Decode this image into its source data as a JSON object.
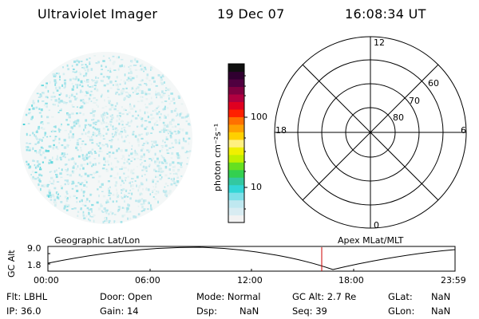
{
  "header": {
    "instrument": "Ultraviolet Imager",
    "date": "19 Dec 07",
    "time": "16:08:34 UT"
  },
  "colorbar": {
    "unit_label": "photon cm⁻²s⁻¹",
    "ticks": [
      "100",
      "10"
    ],
    "colors": [
      "#f2f2f2",
      "#d8ecf2",
      "#bfe8f0",
      "#7fe0e8",
      "#33d6d6",
      "#33c8a0",
      "#33d050",
      "#66e020",
      "#c0f000",
      "#f0f000",
      "#fff080",
      "#ffd000",
      "#ffa000",
      "#ff7000",
      "#ff2000",
      "#e00020",
      "#b00040",
      "#800040",
      "#500040",
      "#300030",
      "#101010"
    ]
  },
  "polar": {
    "mlt_labels": [
      "12",
      "18",
      "6",
      "0"
    ],
    "lat_labels": [
      "60",
      "70",
      "80"
    ]
  },
  "timeline": {
    "ylabel": "GC Alt",
    "y_ticks": [
      "9.0",
      "1.8"
    ],
    "left_label": "Geographic Lat/Lon",
    "right_label": "Apex MLat/MLT",
    "x_ticks": [
      "00:00",
      "06:00",
      "12:00",
      "18:00",
      "23:59"
    ],
    "marker_time": "16:08"
  },
  "info": {
    "row1": {
      "flt": "Flt: LBHL",
      "door": "Door: Open",
      "mode": "Mode: Normal",
      "gc_alt": "GC Alt: 2.7 Re",
      "glat_label": "GLat:",
      "glat_value": "NaN"
    },
    "row2": {
      "ip": "IP: 36.0",
      "gain": "Gain: 14",
      "dsp_label": "Dsp:",
      "dsp_value": "NaN",
      "seq": "Seq: 39",
      "glon_label": "GLon:",
      "glon_value": "NaN"
    }
  }
}
